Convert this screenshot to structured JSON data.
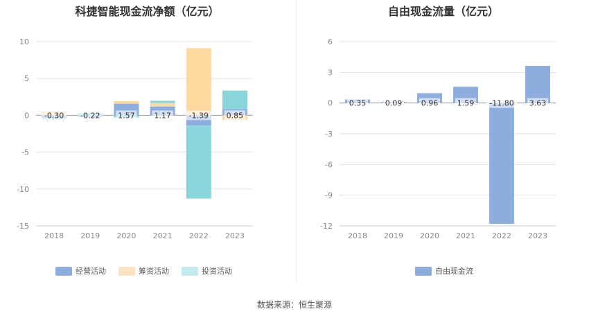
{
  "source_text": "数据来源：恒生聚源",
  "chart_data": [
    {
      "type": "bar",
      "stacked": true,
      "title": "科捷智能现金流净额（亿元）",
      "categories": [
        "2018",
        "2019",
        "2020",
        "2021",
        "2022",
        "2023"
      ],
      "ylim": [
        -15,
        10
      ],
      "yticks": [
        10,
        5,
        0,
        -5,
        -10,
        -15
      ],
      "grid": true,
      "legend_position": "bottom",
      "series": [
        {
          "name": "经营活动",
          "color": "#8eaddf",
          "values": [
            -0.3,
            -0.22,
            1.57,
            1.17,
            -1.39,
            0.85
          ]
        },
        {
          "name": "筹资活动",
          "color": "#fdd9a0",
          "values": [
            0.5,
            0.0,
            0.35,
            0.5,
            9.1,
            -0.6
          ]
        },
        {
          "name": "投资活动",
          "color": "#88d6da",
          "values": [
            -0.2,
            0.3,
            -0.3,
            0.3,
            -9.9,
            2.5
          ]
        }
      ],
      "data_labels": [
        "-0.30",
        "-0.22",
        "1.57",
        "1.17",
        "-1.39",
        "0.85"
      ]
    },
    {
      "type": "bar",
      "title": "自由现金流量（亿元）",
      "categories": [
        "2018",
        "2019",
        "2020",
        "2021",
        "2022",
        "2023"
      ],
      "ylim": [
        -12,
        6
      ],
      "yticks": [
        6,
        3,
        0,
        -3,
        -6,
        -9,
        -12
      ],
      "grid": true,
      "legend_position": "bottom",
      "series": [
        {
          "name": "自由现金流",
          "color": "#8eaddf",
          "values": [
            0.35,
            0.09,
            0.96,
            1.59,
            -11.8,
            3.63
          ]
        }
      ],
      "data_labels": [
        "0.35",
        "0.09",
        "0.96",
        "1.59",
        "-11.80",
        "3.63"
      ]
    }
  ]
}
